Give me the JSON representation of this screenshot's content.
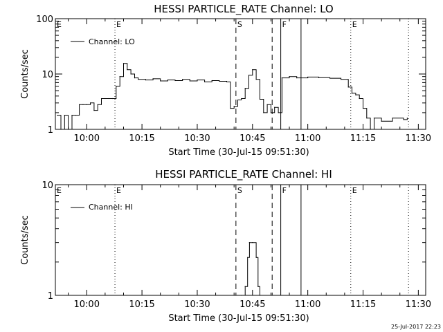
{
  "stamp": "25-Jul-2017 22:23",
  "chart_data": [
    {
      "type": "line",
      "title": "HESSI PARTICLE_RATE Channel: LO",
      "xlabel": "Start Time (30-Jul-15 09:51:30)",
      "ylabel": "Counts/sec",
      "y_scale": "log",
      "ylim": [
        1,
        100
      ],
      "xlim": [
        "09:51:30",
        "11:32:00"
      ],
      "x_ticks": [
        "10:00",
        "10:15",
        "10:30",
        "10:45",
        "11:00",
        "11:15",
        "11:30"
      ],
      "y_ticks": [
        "1",
        "10",
        "100"
      ],
      "legend": {
        "position": "top-left",
        "label": "Channel: LO"
      },
      "markers": [
        {
          "time": "10:07:40",
          "style": "dotted",
          "label": "E"
        },
        {
          "time": "10:40:30",
          "style": "dashed",
          "label": "S"
        },
        {
          "time": "10:50:20",
          "style": "dashed",
          "label": ""
        },
        {
          "time": "10:52:40",
          "style": "solid",
          "label": "F"
        },
        {
          "time": "10:58:10",
          "style": "solid",
          "label": ""
        },
        {
          "time": "11:11:40",
          "style": "dotted",
          "label": "E"
        },
        {
          "time": "11:27:20",
          "style": "dotted",
          "label": ""
        },
        {
          "time": "09:51:30",
          "style": "none",
          "label": "E"
        }
      ],
      "series": [
        {
          "x": [
            "09:52:00",
            "09:53:00",
            "09:54:00",
            "09:55:00",
            "09:56:00",
            "09:57:00",
            "09:58:00",
            "09:59:00",
            "10:00:00",
            "10:01:00",
            "10:02:00",
            "10:03:00",
            "10:04:00",
            "10:05:00",
            "10:06:00",
            "10:07:00",
            "10:08:00",
            "10:09:00",
            "10:10:00",
            "10:11:00",
            "10:12:00",
            "10:13:00",
            "10:14:00",
            "10:16:00",
            "10:18:00",
            "10:20:00",
            "10:22:00",
            "10:24:00",
            "10:26:00",
            "10:28:00",
            "10:30:00",
            "10:32:00",
            "10:34:00",
            "10:36:00",
            "10:38:00",
            "10:39:00",
            "10:40:00",
            "10:41:00",
            "10:42:00",
            "10:43:00",
            "10:44:00",
            "10:45:00",
            "10:46:00",
            "10:47:00",
            "10:48:00",
            "10:49:00",
            "10:50:00",
            "10:51:00",
            "10:52:00",
            "10:53:00",
            "10:55:00",
            "10:57:00",
            "11:00:00",
            "11:03:00",
            "11:06:00",
            "11:09:00",
            "11:11:00",
            "11:12:00",
            "11:13:00",
            "11:14:00",
            "11:15:00",
            "11:16:00",
            "11:17:00",
            "11:18:00",
            "11:20:00",
            "11:23:00",
            "11:26:00",
            "11:27:00"
          ],
          "y": [
            1.8,
            1.0,
            1.8,
            1.0,
            1.8,
            1.8,
            2.8,
            2.8,
            2.8,
            3.0,
            2.2,
            2.8,
            3.6,
            3.6,
            3.6,
            3.6,
            6.0,
            9.0,
            15.5,
            12.0,
            10.0,
            8.5,
            8.0,
            7.8,
            8.2,
            7.5,
            7.8,
            7.6,
            8.0,
            7.5,
            7.8,
            7.2,
            7.6,
            7.4,
            7.2,
            2.4,
            2.6,
            3.4,
            3.6,
            5.5,
            9.5,
            12.0,
            8.0,
            3.5,
            2.0,
            2.8,
            2.0,
            2.5,
            2.0,
            8.5,
            9.0,
            8.5,
            8.8,
            8.6,
            8.4,
            8.0,
            5.8,
            4.5,
            4.2,
            3.6,
            2.4,
            1.6,
            1.0,
            1.6,
            1.4,
            1.6,
            1.5,
            1.6
          ]
        }
      ]
    },
    {
      "type": "line",
      "title": "HESSI PARTICLE_RATE Channel: HI",
      "xlabel": "Start Time (30-Jul-15 09:51:30)",
      "ylabel": "Counts/sec",
      "y_scale": "log",
      "ylim": [
        1,
        10
      ],
      "xlim": [
        "09:51:30",
        "11:32:00"
      ],
      "x_ticks": [
        "10:00",
        "10:15",
        "10:30",
        "10:45",
        "11:00",
        "11:15",
        "11:30"
      ],
      "y_ticks": [
        "1",
        "10"
      ],
      "legend": {
        "position": "top-left",
        "label": "Channel: HI"
      },
      "markers": [
        {
          "time": "10:07:40",
          "style": "dotted",
          "label": "E"
        },
        {
          "time": "10:40:30",
          "style": "dashed",
          "label": "S"
        },
        {
          "time": "10:50:20",
          "style": "dashed",
          "label": ""
        },
        {
          "time": "10:52:40",
          "style": "solid",
          "label": "F"
        },
        {
          "time": "10:58:10",
          "style": "solid",
          "label": ""
        },
        {
          "time": "11:11:40",
          "style": "dotted",
          "label": "E"
        },
        {
          "time": "11:27:20",
          "style": "dotted",
          "label": ""
        },
        {
          "time": "09:51:30",
          "style": "none",
          "label": "E"
        }
      ],
      "series": [
        {
          "x": [
            "10:42:00",
            "10:43:00",
            "10:43:40",
            "10:44:10",
            "10:45:00",
            "10:46:00",
            "10:46:30",
            "10:47:00"
          ],
          "y": [
            1.0,
            1.2,
            2.2,
            3.0,
            3.0,
            2.2,
            1.2,
            1.0
          ]
        }
      ]
    }
  ]
}
